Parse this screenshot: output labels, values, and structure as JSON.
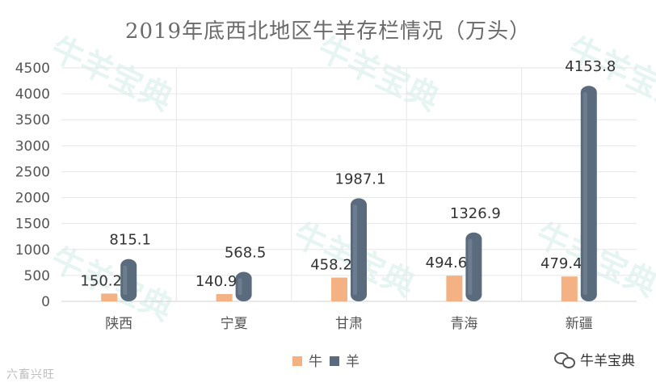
{
  "chart_data": {
    "type": "bar",
    "title": "2019年底西北地区牛羊存栏情况（万头）",
    "categories": [
      "陕西",
      "宁夏",
      "甘肃",
      "青海",
      "新疆"
    ],
    "series": [
      {
        "name": "牛",
        "values": [
          150.2,
          140.9,
          458.2,
          494.6,
          479.4
        ],
        "color": "#f4b183"
      },
      {
        "name": "羊",
        "values": [
          815.1,
          568.5,
          1987.1,
          1326.9,
          4153.8
        ],
        "color": "#5a6b7e"
      }
    ],
    "ylim": [
      0,
      4500
    ],
    "yticks": [
      0,
      500,
      1000,
      1500,
      2000,
      2500,
      3000,
      3500,
      4000,
      4500
    ],
    "grid": true,
    "legend": "bottom-center"
  },
  "watermark_text": "牛羊宝典",
  "footer": {
    "left_text": "六畜兴旺",
    "right_text": "牛羊宝典",
    "right_icon": "wechat-icon"
  }
}
